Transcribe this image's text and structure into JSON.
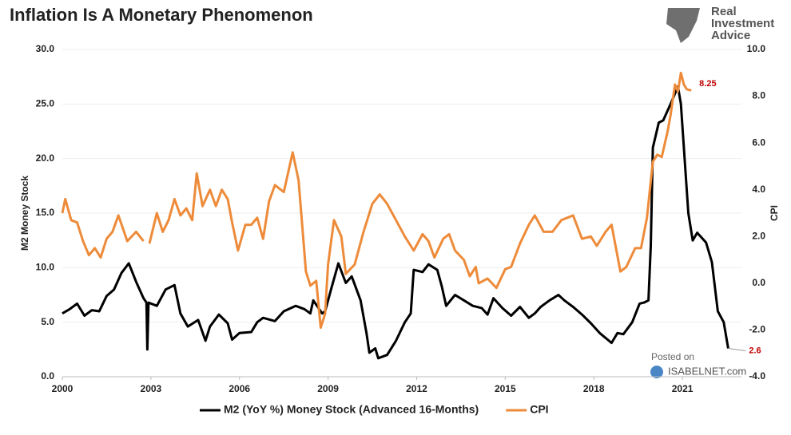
{
  "chart_data": {
    "type": "line",
    "title": "Inflation Is A Monetary Phenomenon",
    "brand": [
      "Real",
      "Investment",
      "Advice"
    ],
    "watermark": [
      "Posted on",
      "ISABELNET.com"
    ],
    "y_label": "M2 Money Stock",
    "y2_label": "CPI",
    "xlim": [
      2000,
      2023
    ],
    "xticks": [
      2000,
      2003,
      2006,
      2009,
      2012,
      2015,
      2018,
      2021
    ],
    "ylim": [
      0,
      30
    ],
    "yticks": [
      {
        "value": 0,
        "label": "0.0"
      },
      {
        "value": 5,
        "label": "5.0"
      },
      {
        "value": 10,
        "label": "10.0"
      },
      {
        "value": 15,
        "label": "15.0"
      },
      {
        "value": 20,
        "label": "20.0"
      },
      {
        "value": 25,
        "label": "25.0"
      },
      {
        "value": 30,
        "label": "30.0"
      }
    ],
    "y2lim": [
      -4,
      10
    ],
    "y2ticks": [
      {
        "value": -4,
        "label": "-4.0"
      },
      {
        "value": -2,
        "label": "-2.0"
      },
      {
        "value": 0,
        "label": "0.0"
      },
      {
        "value": 2,
        "label": "2.0"
      },
      {
        "value": 4,
        "label": "4.0"
      },
      {
        "value": 6,
        "label": "6.0"
      },
      {
        "value": 8,
        "label": "8.0"
      },
      {
        "value": 10,
        "label": "10.0"
      }
    ],
    "grid": true,
    "annotations": [
      "2.6",
      "8.25"
    ],
    "series": [
      {
        "name": "M2 (YoY %) Money Stock (Advanced 16-Months)",
        "color": "#000000",
        "axis": "y",
        "x": [
          2000,
          2000.25,
          2000.5,
          2000.75,
          2001,
          2001.25,
          2001.5,
          2001.75,
          2002,
          2002.25,
          2002.5,
          2002.75,
          2002.85,
          2002.88,
          2002.92,
          2003.2,
          2003.5,
          2003.8,
          2004.0,
          2004.25,
          2004.6,
          2004.85,
          2005.0,
          2005.3,
          2005.6,
          2005.75,
          2006.0,
          2006.4,
          2006.6,
          2006.8,
          2007.2,
          2007.5,
          2007.9,
          2008.2,
          2008.4,
          2008.5,
          2008.8,
          2008.9,
          2009.1,
          2009.35,
          2009.6,
          2009.8,
          2010.1,
          2010.3,
          2010.4,
          2010.6,
          2010.7,
          2011.0,
          2011.3,
          2011.6,
          2011.8,
          2011.9,
          2012.2,
          2012.4,
          2012.7,
          2012.85,
          2013.0,
          2013.3,
          2013.6,
          2013.9,
          2014.2,
          2014.4,
          2014.6,
          2014.9,
          2015.2,
          2015.5,
          2015.8,
          2016.0,
          2016.2,
          2016.5,
          2016.8,
          2017.0,
          2017.3,
          2017.6,
          2017.9,
          2018.2,
          2018.6,
          2018.8,
          2019.0,
          2019.3,
          2019.55,
          2019.7,
          2019.85,
          2019.93,
          2020.0,
          2020.2,
          2020.35,
          2020.6,
          2020.85,
          2020.95,
          2021.2,
          2021.35,
          2021.5,
          2021.8,
          2022.0,
          2022.2,
          2022.4,
          2022.55
        ],
        "values": [
          5.8,
          6.2,
          6.7,
          5.6,
          6.1,
          6.0,
          7.4,
          8.0,
          9.5,
          10.4,
          8.7,
          7.2,
          6.8,
          2.5,
          6.8,
          6.5,
          8.0,
          8.4,
          5.8,
          4.6,
          5.2,
          3.3,
          4.6,
          5.7,
          4.9,
          3.4,
          4.0,
          4.1,
          5.0,
          5.4,
          5.1,
          6.0,
          6.5,
          6.2,
          5.8,
          7.0,
          5.8,
          6.0,
          8.0,
          10.4,
          8.6,
          9.2,
          7.0,
          4.0,
          2.2,
          2.6,
          1.7,
          2.0,
          3.3,
          5.0,
          5.8,
          9.8,
          9.6,
          10.3,
          9.8,
          8.3,
          6.5,
          7.5,
          7.0,
          6.5,
          6.3,
          5.7,
          7.2,
          6.3,
          5.6,
          6.4,
          5.4,
          5.8,
          6.4,
          7.0,
          7.5,
          7.0,
          6.4,
          5.7,
          4.9,
          4.0,
          3.1,
          4.0,
          3.9,
          5.0,
          6.7,
          6.8,
          7.0,
          12,
          21,
          23.3,
          23.5,
          25.0,
          26.6,
          25,
          15,
          12.5,
          13.2,
          12.3,
          10.5,
          6.0,
          5.0,
          2.6
        ]
      },
      {
        "name": "CPI",
        "color": "#ed8b3a",
        "axis": "y2",
        "x": [
          2000,
          2000.1,
          2000.3,
          2000.5,
          2000.7,
          2000.9,
          2001.1,
          2001.3,
          2001.5,
          2001.7,
          2001.9,
          2002.2,
          2002.5,
          2002.75,
          2002.8,
          2002.95,
          2003.2,
          2003.4,
          2003.6,
          2003.8,
          2004.0,
          2004.2,
          2004.4,
          2004.55,
          2004.75,
          2005.0,
          2005.2,
          2005.4,
          2005.6,
          2005.75,
          2005.95,
          2006.2,
          2006.4,
          2006.6,
          2006.8,
          2007.0,
          2007.2,
          2007.5,
          2007.8,
          2008.0,
          2008.25,
          2008.4,
          2008.6,
          2008.75,
          2008.9,
          2009.0,
          2009.2,
          2009.45,
          2009.6,
          2009.9,
          2010.2,
          2010.5,
          2010.75,
          2011.0,
          2011.3,
          2011.6,
          2011.9,
          2012.2,
          2012.4,
          2012.6,
          2012.9,
          2013.1,
          2013.3,
          2013.6,
          2013.8,
          2014.0,
          2014.1,
          2014.4,
          2014.7,
          2015.0,
          2015.2,
          2015.5,
          2015.8,
          2016.0,
          2016.3,
          2016.6,
          2016.9,
          2017.3,
          2017.6,
          2017.9,
          2018.1,
          2018.4,
          2018.6,
          2018.9,
          2019.1,
          2019.4,
          2019.6,
          2019.8,
          2020.0,
          2020.15,
          2020.3,
          2020.5,
          2020.6,
          2020.75,
          2020.85,
          2020.95,
          2021.05,
          2021.15,
          2021.3
        ],
        "values": [
          3.0,
          3.6,
          2.7,
          2.6,
          1.8,
          1.2,
          1.5,
          1.1,
          1.9,
          2.2,
          2.9,
          1.8,
          2.2,
          1.8,
          null,
          1.7,
          3.0,
          2.2,
          2.7,
          3.6,
          2.9,
          3.2,
          2.7,
          4.7,
          3.3,
          4.0,
          3.3,
          4.0,
          3.6,
          2.6,
          1.4,
          2.5,
          2.5,
          2.8,
          1.9,
          3.5,
          4.2,
          3.9,
          5.6,
          4.4,
          0.5,
          -0.1,
          0.1,
          -1.9,
          -1.3,
          0.8,
          2.7,
          2.0,
          0.4,
          0.8,
          2.2,
          3.4,
          3.8,
          3.4,
          2.7,
          2.0,
          1.4,
          2.1,
          1.8,
          1.1,
          1.9,
          2.1,
          1.4,
          1.0,
          0.3,
          0.7,
          0.0,
          0.2,
          -0.2,
          0.6,
          0.7,
          1.7,
          2.5,
          2.9,
          2.2,
          2.2,
          2.7,
          2.9,
          1.9,
          2.0,
          1.6,
          2.2,
          2.5,
          0.5,
          0.7,
          1.5,
          1.5,
          2.8,
          5.2,
          5.5,
          5.4,
          6.5,
          7.2,
          8.5,
          8.2,
          9.0,
          8.5,
          8.3,
          8.25
        ]
      }
    ]
  }
}
